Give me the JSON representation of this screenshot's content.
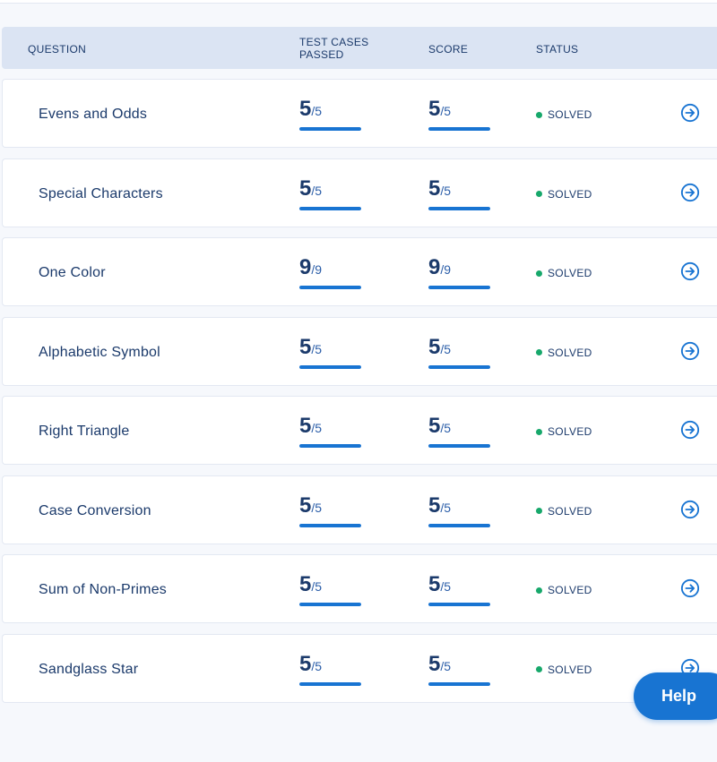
{
  "header": {
    "question": "QUESTION",
    "tests_line1": "TEST CASES",
    "tests_line2": "PASSED",
    "score": "SCORE",
    "status": "STATUS"
  },
  "rows": [
    {
      "name": "Evens and Odds",
      "tests_passed": "5",
      "tests_total": "/5",
      "score": "5",
      "score_total": "/5",
      "tests_fraction": 1.0,
      "score_fraction": 1.0,
      "status": "SOLVED"
    },
    {
      "name": "Special Characters",
      "tests_passed": "5",
      "tests_total": "/5",
      "score": "5",
      "score_total": "/5",
      "tests_fraction": 1.0,
      "score_fraction": 1.0,
      "status": "SOLVED"
    },
    {
      "name": "One Color",
      "tests_passed": "9",
      "tests_total": "/9",
      "score": "9",
      "score_total": "/9",
      "tests_fraction": 1.0,
      "score_fraction": 1.0,
      "status": "SOLVED"
    },
    {
      "name": "Alphabetic Symbol",
      "tests_passed": "5",
      "tests_total": "/5",
      "score": "5",
      "score_total": "/5",
      "tests_fraction": 1.0,
      "score_fraction": 1.0,
      "status": "SOLVED"
    },
    {
      "name": "Right Triangle",
      "tests_passed": "5",
      "tests_total": "/5",
      "score": "5",
      "score_total": "/5",
      "tests_fraction": 1.0,
      "score_fraction": 1.0,
      "status": "SOLVED"
    },
    {
      "name": "Case Conversion",
      "tests_passed": "5",
      "tests_total": "/5",
      "score": "5",
      "score_total": "/5",
      "tests_fraction": 1.0,
      "score_fraction": 1.0,
      "status": "SOLVED"
    },
    {
      "name": "Sum of Non-Primes",
      "tests_passed": "5",
      "tests_total": "/5",
      "score": "5",
      "score_total": "/5",
      "tests_fraction": 1.0,
      "score_fraction": 1.0,
      "status": "SOLVED"
    },
    {
      "name": "Sandglass Star",
      "tests_passed": "5",
      "tests_total": "/5",
      "score": "5",
      "score_total": "/5",
      "tests_fraction": 1.0,
      "score_fraction": 1.0,
      "status": "SOLVED"
    }
  ],
  "icons": {
    "row_action": "arrow-right-circle-icon",
    "status": "status-dot-icon"
  },
  "colors": {
    "accent": "#1874d2",
    "solved": "#17a86b",
    "text": "#1b3a6b",
    "header_bg": "#dbe4f3"
  },
  "help": {
    "label": "Help"
  }
}
